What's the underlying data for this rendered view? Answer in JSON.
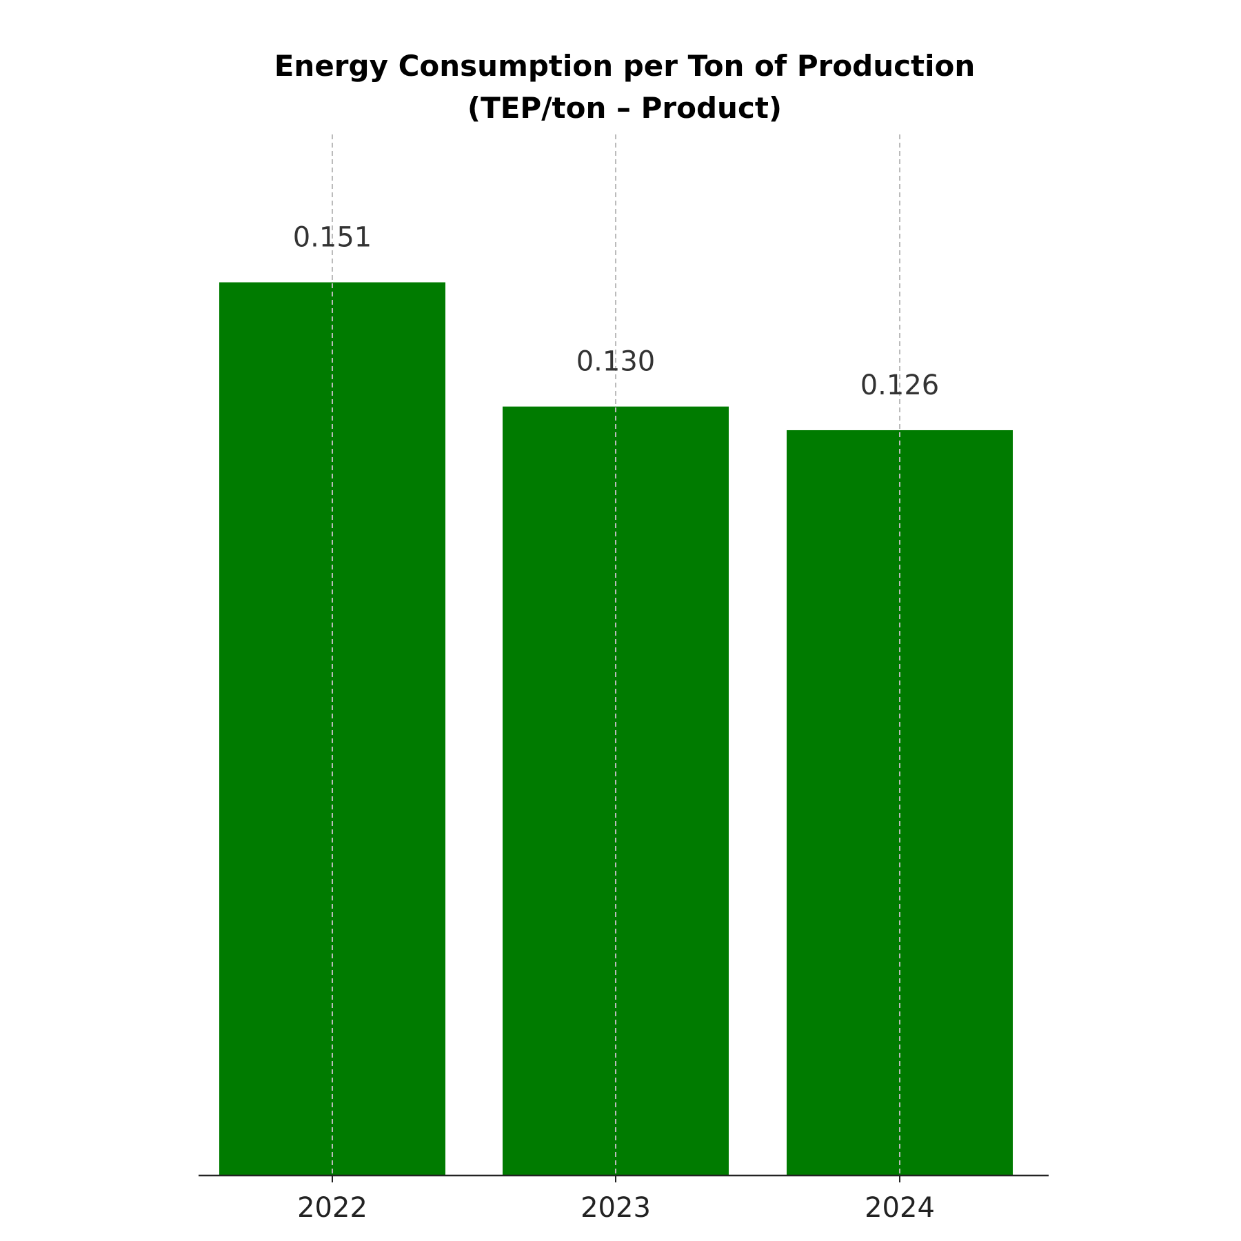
{
  "chart_data": {
    "type": "bar",
    "title": "Energy Consumption per Ton of Production",
    "subtitle": "(TEP/ton – Product)",
    "xlabel": "",
    "ylabel": "",
    "categories": [
      "2022",
      "2023",
      "2024"
    ],
    "values": [
      0.151,
      0.13,
      0.126
    ],
    "value_labels": [
      "0.151",
      "0.130",
      "0.126"
    ],
    "ylim": [
      0,
      0.176
    ],
    "bar_color": "#007b00",
    "grid": "vertical dashed lines at category ticks",
    "legend": "none"
  }
}
